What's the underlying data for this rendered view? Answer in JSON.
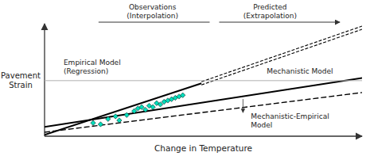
{
  "chart_data": {
    "type": "line",
    "xlabel": "Change in Temperature",
    "ylabel": "Pavement\nStrain",
    "xlim": [
      0.0,
      0.85
    ],
    "ylim": [
      0.0,
      0.85
    ],
    "tick_labels": false,
    "grid": false,
    "annotations": [
      "Observations\n(Interpolation)",
      "Predicted\n(Extrapolation)"
    ],
    "series": [
      {
        "name": "Empirical Model\n(Regression)",
        "type": "line",
        "line_style": "solid",
        "color": "#000000",
        "x": [
          0.0,
          0.42
        ],
        "values": [
          0.01,
          0.4
        ]
      },
      {
        "type": "line",
        "line_style": "double-dashed",
        "color": "#000000",
        "x": [
          0.42,
          0.85
        ],
        "values": [
          0.4,
          0.82
        ]
      },
      {
        "name": "Mechanistic Model",
        "type": "line",
        "line_style": "solid",
        "color": "#000000",
        "x": [
          0.0,
          0.85
        ],
        "values": [
          0.07,
          0.44
        ]
      },
      {
        "name": "Mechanistic-Empirical\nModel",
        "type": "line",
        "line_style": "dashed",
        "color": "#000000",
        "x": [
          0.0,
          0.85
        ],
        "values": [
          0.03,
          0.33
        ]
      },
      {
        "type": "scatter",
        "marker": "diamond",
        "color": "#00ddbb",
        "x": [
          0.13,
          0.15,
          0.17,
          0.19,
          0.2,
          0.22,
          0.24,
          0.25,
          0.26,
          0.27,
          0.28,
          0.29,
          0.3,
          0.31,
          0.32,
          0.33,
          0.34,
          0.35,
          0.36,
          0.37
        ],
        "values": [
          0.1,
          0.09,
          0.13,
          0.15,
          0.12,
          0.16,
          0.19,
          0.21,
          0.22,
          0.2,
          0.23,
          0.22,
          0.25,
          0.24,
          0.26,
          0.27,
          0.28,
          0.29,
          0.3,
          0.31
        ]
      },
      {
        "type": "hline",
        "values": [
          0.42
        ]
      }
    ]
  }
}
